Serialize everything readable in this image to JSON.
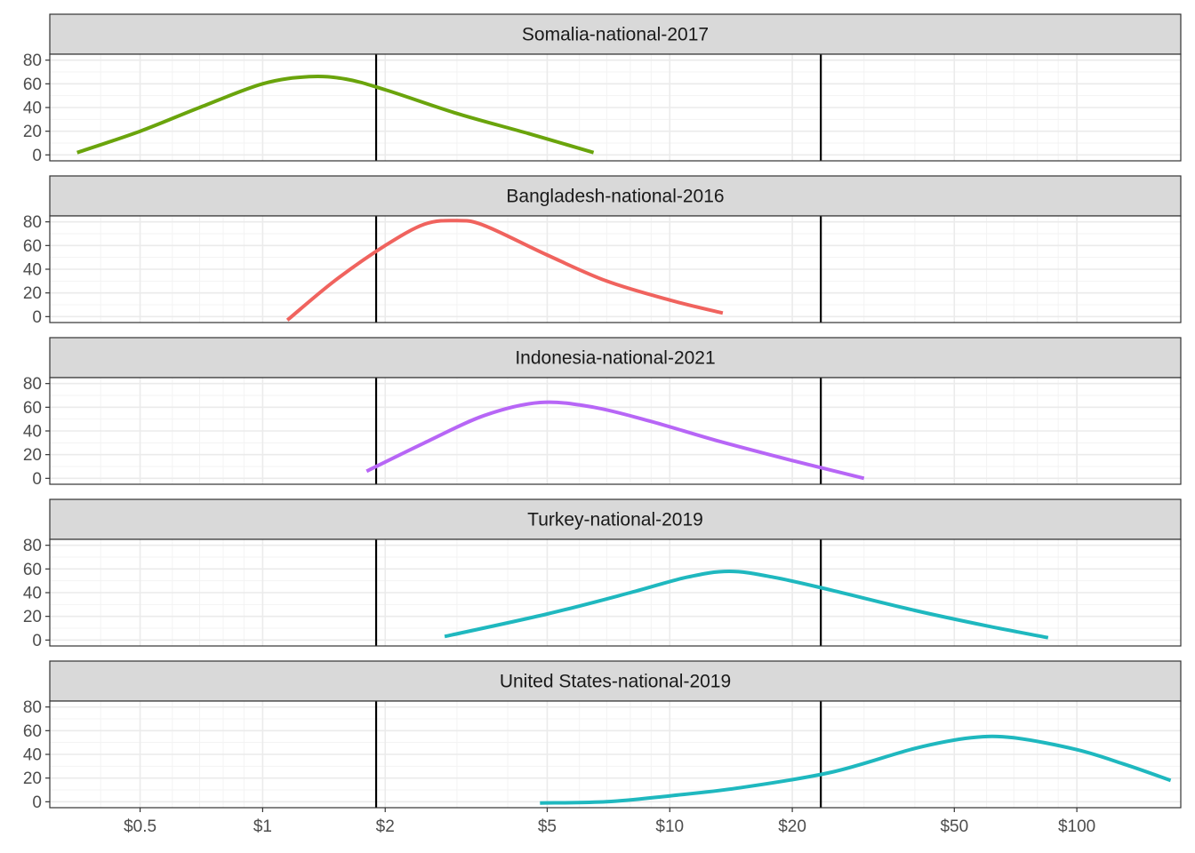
{
  "chart_data": {
    "type": "line",
    "facet_layout": "stacked-vertical",
    "x_scale": "log",
    "xlim": [
      0.3,
      180
    ],
    "ylim": [
      -5,
      85
    ],
    "x_ticks": [
      {
        "value": 0.5,
        "label": "$0.5"
      },
      {
        "value": 1,
        "label": "$1"
      },
      {
        "value": 2,
        "label": "$2"
      },
      {
        "value": 5,
        "label": "$5"
      },
      {
        "value": 10,
        "label": "$10"
      },
      {
        "value": 20,
        "label": "$20"
      },
      {
        "value": 50,
        "label": "$50"
      },
      {
        "value": 100,
        "label": "$100"
      }
    ],
    "y_ticks": [
      {
        "value": 0,
        "label": "0"
      },
      {
        "value": 20,
        "label": "20"
      },
      {
        "value": 40,
        "label": "40"
      },
      {
        "value": 60,
        "label": "60"
      },
      {
        "value": 80,
        "label": "80"
      }
    ],
    "reference_lines_x": [
      1.9,
      23.5
    ],
    "grid": true,
    "colors": {
      "strip_fill": "#d9d9d9",
      "panel_border": "#333333",
      "grid_major": "#ebebeb",
      "grid_minor": "#f3f3f3",
      "reference_line": "#000000"
    },
    "panels": [
      {
        "title": "Somalia-national-2017",
        "color": "#6aa40c",
        "points": [
          [
            0.35,
            2
          ],
          [
            0.5,
            20
          ],
          [
            0.7,
            40
          ],
          [
            1.0,
            60
          ],
          [
            1.3,
            66
          ],
          [
            1.6,
            64
          ],
          [
            2.0,
            55
          ],
          [
            3.0,
            35
          ],
          [
            4.5,
            18
          ],
          [
            6.5,
            2
          ]
        ]
      },
      {
        "title": "Bangladesh-national-2016",
        "color": "#f0635e",
        "points": [
          [
            1.15,
            -3
          ],
          [
            1.5,
            30
          ],
          [
            2.0,
            60
          ],
          [
            2.5,
            78
          ],
          [
            3.0,
            81
          ],
          [
            3.5,
            77
          ],
          [
            5.0,
            52
          ],
          [
            7.0,
            30
          ],
          [
            10.0,
            14
          ],
          [
            13.5,
            3
          ]
        ]
      },
      {
        "title": "Indonesia-national-2021",
        "color": "#b766f6",
        "points": [
          [
            1.8,
            6
          ],
          [
            2.5,
            30
          ],
          [
            3.5,
            53
          ],
          [
            4.8,
            64
          ],
          [
            6.5,
            60
          ],
          [
            9.0,
            48
          ],
          [
            13.0,
            32
          ],
          [
            20.0,
            15
          ],
          [
            30.0,
            0
          ]
        ]
      },
      {
        "title": "Turkey-national-2019",
        "color": "#1fb8bf",
        "points": [
          [
            2.8,
            3
          ],
          [
            5.0,
            22
          ],
          [
            8.0,
            40
          ],
          [
            11.0,
            53
          ],
          [
            14.0,
            58
          ],
          [
            18.0,
            53
          ],
          [
            25.0,
            42
          ],
          [
            40.0,
            25
          ],
          [
            60.0,
            12
          ],
          [
            85.0,
            2
          ]
        ]
      },
      {
        "title": "United States-national-2019",
        "color": "#1fb8bf",
        "points": [
          [
            4.8,
            -1
          ],
          [
            7.0,
            0
          ],
          [
            10.0,
            5
          ],
          [
            15.0,
            12
          ],
          [
            25.0,
            25
          ],
          [
            40.0,
            45
          ],
          [
            55.0,
            54
          ],
          [
            70.0,
            54
          ],
          [
            100.0,
            44
          ],
          [
            130.0,
            32
          ],
          [
            170.0,
            18
          ]
        ]
      }
    ]
  }
}
